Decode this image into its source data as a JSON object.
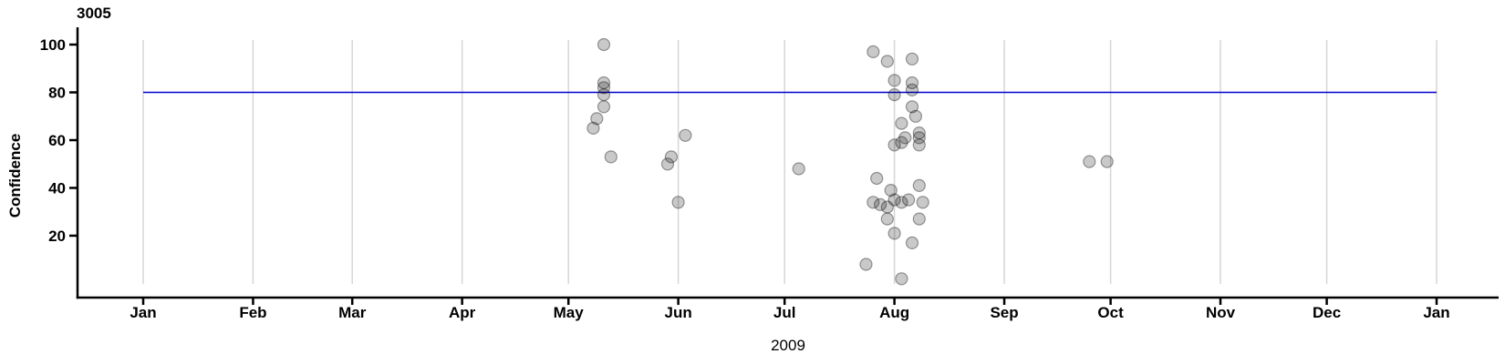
{
  "chart_data": {
    "type": "scatter",
    "title": "3005",
    "ylabel": "Confidence",
    "xlabel": "2009",
    "x_axis": {
      "start": "2009-01-01",
      "end": "2010-01-01",
      "tick_labels": [
        "Jan",
        "Feb",
        "Mar",
        "Apr",
        "May",
        "Jun",
        "Jul",
        "Aug",
        "Sep",
        "Oct",
        "Nov",
        "Dec",
        "Jan"
      ],
      "grid": "vertical gridline at each month"
    },
    "y_axis": {
      "ticks": [
        20,
        40,
        60,
        80,
        100
      ],
      "range": [
        0,
        100
      ],
      "grid": "none"
    },
    "legend": "none",
    "reference_line": {
      "y": 80,
      "span": [
        "2009-01-01",
        "2010-01-01"
      ]
    },
    "points": [
      {
        "date": "2009-05-11",
        "confidence": 100
      },
      {
        "date": "2009-05-11",
        "confidence": 84
      },
      {
        "date": "2009-05-11",
        "confidence": 82
      },
      {
        "date": "2009-05-11",
        "confidence": 79
      },
      {
        "date": "2009-05-11",
        "confidence": 74
      },
      {
        "date": "2009-05-09",
        "confidence": 69
      },
      {
        "date": "2009-05-08",
        "confidence": 65
      },
      {
        "date": "2009-05-13",
        "confidence": 53
      },
      {
        "date": "2009-06-03",
        "confidence": 62
      },
      {
        "date": "2009-05-30",
        "confidence": 53
      },
      {
        "date": "2009-05-29",
        "confidence": 50
      },
      {
        "date": "2009-06-01",
        "confidence": 34
      },
      {
        "date": "2009-07-05",
        "confidence": 48
      },
      {
        "date": "2009-07-26",
        "confidence": 97
      },
      {
        "date": "2009-07-30",
        "confidence": 93
      },
      {
        "date": "2009-08-06",
        "confidence": 94
      },
      {
        "date": "2009-08-01",
        "confidence": 85
      },
      {
        "date": "2009-08-06",
        "confidence": 84
      },
      {
        "date": "2009-08-06",
        "confidence": 81
      },
      {
        "date": "2009-08-01",
        "confidence": 79
      },
      {
        "date": "2009-08-06",
        "confidence": 74
      },
      {
        "date": "2009-08-07",
        "confidence": 70
      },
      {
        "date": "2009-08-03",
        "confidence": 67
      },
      {
        "date": "2009-08-08",
        "confidence": 63
      },
      {
        "date": "2009-08-08",
        "confidence": 61
      },
      {
        "date": "2009-08-04",
        "confidence": 61
      },
      {
        "date": "2009-08-03",
        "confidence": 59
      },
      {
        "date": "2009-08-01",
        "confidence": 58
      },
      {
        "date": "2009-08-08",
        "confidence": 58
      },
      {
        "date": "2009-07-27",
        "confidence": 44
      },
      {
        "date": "2009-07-31",
        "confidence": 39
      },
      {
        "date": "2009-08-08",
        "confidence": 41
      },
      {
        "date": "2009-08-01",
        "confidence": 35
      },
      {
        "date": "2009-07-26",
        "confidence": 34
      },
      {
        "date": "2009-07-28",
        "confidence": 33
      },
      {
        "date": "2009-07-30",
        "confidence": 32
      },
      {
        "date": "2009-08-03",
        "confidence": 34
      },
      {
        "date": "2009-08-05",
        "confidence": 35
      },
      {
        "date": "2009-08-09",
        "confidence": 34
      },
      {
        "date": "2009-07-30",
        "confidence": 27
      },
      {
        "date": "2009-08-08",
        "confidence": 27
      },
      {
        "date": "2009-08-01",
        "confidence": 21
      },
      {
        "date": "2009-08-06",
        "confidence": 17
      },
      {
        "date": "2009-07-24",
        "confidence": 8
      },
      {
        "date": "2009-08-03",
        "confidence": 2
      },
      {
        "date": "2009-09-25",
        "confidence": 51
      },
      {
        "date": "2009-09-30",
        "confidence": 51
      }
    ],
    "colors": {
      "background": "#ffffff",
      "axis": "#000000",
      "gridline": "#d6d6d6",
      "reference_line": "#0000cc",
      "point_fill": "rgba(0,0,0,0.21)",
      "point_stroke": "rgba(0,0,0,0.38)"
    }
  }
}
